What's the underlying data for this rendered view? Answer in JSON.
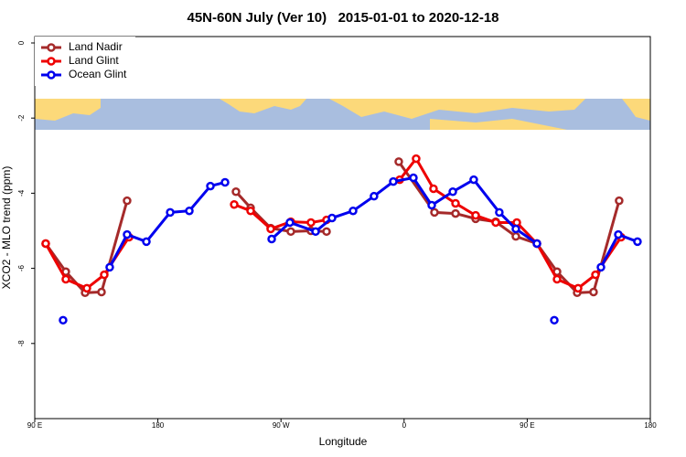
{
  "chart_data": {
    "type": "line",
    "title": "45N-60N July (Ver 10)   2015-01-01 to 2020-12-18",
    "xlabel": "Longitude",
    "ylabel": "XCO2 - MLO trend (ppm)",
    "xlim": [
      90,
      540
    ],
    "ylim": [
      -10,
      0.17
    ],
    "xticks": [
      {
        "value": 90,
        "label": "90 E"
      },
      180,
      {
        "value": 270,
        "label": "90 W"
      },
      {
        "value": 360,
        "label": "0"
      },
      {
        "value": 450,
        "label": "90 E"
      },
      {
        "value": 540,
        "label": "180"
      }
    ],
    "yticks": [
      0,
      -2,
      -4,
      -6,
      -8
    ],
    "legend": "upper left",
    "series": [
      {
        "name": "Land Nadir",
        "color": "#a52a2a",
        "x": [
          98.0,
          112.7,
          126.8,
          138.8,
          157.5,
          null,
          237.1,
          247.8,
          262.5,
          277.2,
          291.9,
          303.3,
          null,
          356.1,
          382.2,
          397.6,
          412.3,
          427.0,
          441.7,
          457.1,
          471.8,
          486.5,
          498.5,
          517.2
        ],
        "values": [
          -5.34,
          -6.09,
          -6.65,
          -6.63,
          -4.2,
          null,
          -3.96,
          -4.39,
          -4.93,
          -5.02,
          -5.0,
          -5.02,
          null,
          -3.16,
          -4.51,
          -4.54,
          -4.68,
          -4.76,
          -5.15,
          -5.34,
          -6.09,
          -6.65,
          -6.63,
          -4.2
        ]
      },
      {
        "name": "Land Glint",
        "color": "#ee0000",
        "x": [
          98.0,
          112.7,
          128.1,
          140.8,
          158.9,
          null,
          235.8,
          247.8,
          262.5,
          277.2,
          291.9,
          303.3,
          null,
          356.8,
          368.8,
          381.5,
          397.6,
          412.3,
          427.0,
          442.4,
          457.1,
          471.8,
          487.2,
          499.9,
          518.6
        ],
        "values": [
          -5.34,
          -6.29,
          -6.53,
          -6.17,
          -5.17,
          null,
          -4.3,
          -4.47,
          -4.95,
          -4.76,
          -4.78,
          -4.71,
          null,
          -3.64,
          -3.08,
          -3.88,
          -4.27,
          -4.59,
          -4.78,
          -4.78,
          -5.34,
          -6.29,
          -6.53,
          -6.17,
          -5.17
        ]
      },
      {
        "name": "Ocean Glint",
        "color": "#0000ee",
        "x": [
          110.7,
          null,
          144.8,
          157.5,
          171.6,
          189.0,
          203.0,
          218.4,
          229.1,
          null,
          263.2,
          276.5,
          295.3,
          307.3,
          322.7,
          338.0,
          352.1,
          366.8,
          380.2,
          395.6,
          410.9,
          429.6,
          441.7,
          457.1,
          null,
          469.8,
          null,
          503.9,
          516.6,
          530.6
        ],
        "values": [
          -7.38,
          null,
          -5.97,
          -5.1,
          -5.29,
          -4.51,
          -4.47,
          -3.81,
          -3.71,
          null,
          -5.22,
          -4.78,
          -5.02,
          -4.66,
          -4.47,
          -4.08,
          -3.69,
          -3.59,
          -4.32,
          -3.96,
          -3.64,
          -4.51,
          -4.95,
          -5.34,
          null,
          -7.38,
          null,
          -5.97,
          -5.1,
          -5.29
        ]
      }
    ]
  }
}
